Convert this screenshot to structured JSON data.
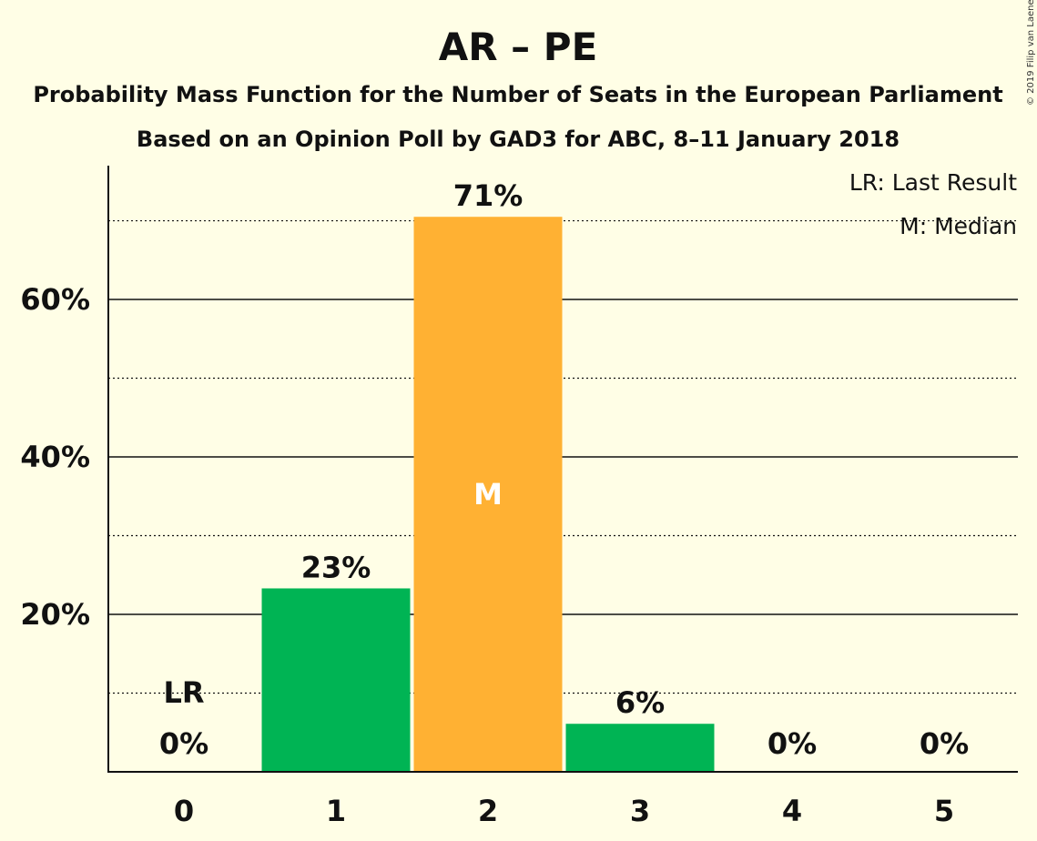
{
  "chart_data": {
    "type": "bar",
    "title": "AR – PE",
    "subtitle_lines": [
      "Probability Mass Function for the Number of Seats in the European Parliament",
      "Based on an Opinion Poll by GAD3 for ABC, 8–11 January 2018"
    ],
    "copyright": "© 2019 Filip van Laenen",
    "categories": [
      "0",
      "1",
      "2",
      "3",
      "4",
      "5"
    ],
    "values": [
      0,
      23.3,
      70.5,
      6.1,
      0,
      0
    ],
    "data_labels": [
      "0%",
      "23%",
      "71%",
      "6%",
      "0%",
      "0%"
    ],
    "bar_colors": [
      "#00B454",
      "#00B454",
      "#FFB133",
      "#00B454",
      "#00B454",
      "#00B454"
    ],
    "ylim": [
      0,
      77
    ],
    "major_ticks": [
      20,
      40,
      60
    ],
    "major_tick_labels": [
      "20%",
      "40%",
      "60%"
    ],
    "minor_gridlines": [
      10,
      30,
      50,
      70
    ],
    "last_result_index": 0,
    "last_result_label": "LR",
    "median_index": 2,
    "median_label": "M",
    "legend": {
      "position": "top-right",
      "entries": [
        "LR: Last Result",
        "M: Median"
      ]
    }
  }
}
